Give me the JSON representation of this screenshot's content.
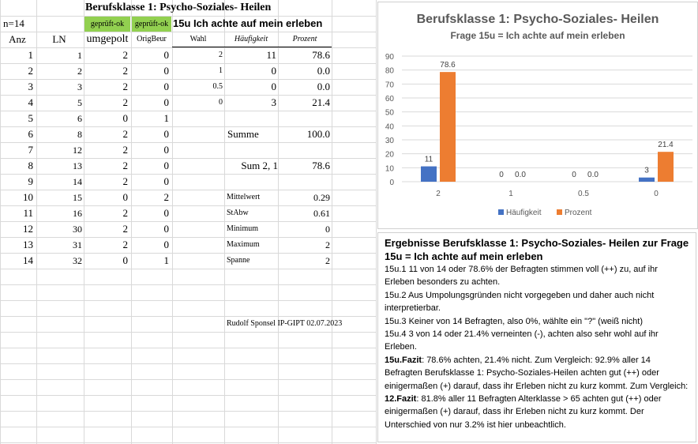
{
  "sheet": {
    "title": "Berufsklasse 1: Psycho-Soziales- Heilen",
    "n_label": "n=14",
    "tag1": "geprüft-ok",
    "tag2": "geprüft-ok",
    "question": "15u Ich achte auf mein erleben",
    "headers": {
      "anz": "Anz",
      "ln": "LN",
      "umgepolt": "umgepolt",
      "origbeur": "OrigBeur",
      "wahl": "Wahl",
      "haeufigkeit": "Häufigkeit",
      "prozent": "Prozent"
    },
    "rows": [
      {
        "anz": "1",
        "ln": "1",
        "umg": "2",
        "orig": "0"
      },
      {
        "anz": "2",
        "ln": "2",
        "umg": "2",
        "orig": "0"
      },
      {
        "anz": "3",
        "ln": "3",
        "umg": "2",
        "orig": "0"
      },
      {
        "anz": "4",
        "ln": "5",
        "umg": "2",
        "orig": "0"
      },
      {
        "anz": "5",
        "ln": "6",
        "umg": "0",
        "orig": "1"
      },
      {
        "anz": "6",
        "ln": "8",
        "umg": "2",
        "orig": "0"
      },
      {
        "anz": "7",
        "ln": "12",
        "umg": "2",
        "orig": "0"
      },
      {
        "anz": "8",
        "ln": "13",
        "umg": "2",
        "orig": "0"
      },
      {
        "anz": "9",
        "ln": "14",
        "umg": "2",
        "orig": "0"
      },
      {
        "anz": "10",
        "ln": "15",
        "umg": "0",
        "orig": "2"
      },
      {
        "anz": "11",
        "ln": "16",
        "umg": "2",
        "orig": "0"
      },
      {
        "anz": "12",
        "ln": "30",
        "umg": "2",
        "orig": "0"
      },
      {
        "anz": "13",
        "ln": "31",
        "umg": "2",
        "orig": "0"
      },
      {
        "anz": "14",
        "ln": "32",
        "umg": "0",
        "orig": "1"
      }
    ],
    "freq": [
      {
        "wahl": "2",
        "haeuf": "11",
        "proz": "78.6"
      },
      {
        "wahl": "1",
        "haeuf": "0",
        "proz": "0.0"
      },
      {
        "wahl": "0.5",
        "haeuf": "0",
        "proz": "0.0"
      },
      {
        "wahl": "0",
        "haeuf": "3",
        "proz": "21.4"
      }
    ],
    "summe_label": "Summe",
    "summe_value": "100.0",
    "sum21_label": "Sum 2, 1",
    "sum21_value": "78.6",
    "stats": [
      {
        "label": "Mittelwert",
        "value": "0.29"
      },
      {
        "label": "StAbw",
        "value": "0.61"
      },
      {
        "label": "Minimum",
        "value": "0"
      },
      {
        "label": "Maximum",
        "value": "2"
      },
      {
        "label": "Spanne",
        "value": "2"
      }
    ],
    "author": "Rudolf Sponsel IP-GIPT 02.07.2023"
  },
  "chart_data": {
    "type": "bar",
    "title": "Berufsklasse 1: Psycho-Soziales- Heilen",
    "subtitle": "Frage 15u =  Ich achte auf mein erleben",
    "categories": [
      "2",
      "1",
      "0.5",
      "0"
    ],
    "series": [
      {
        "name": "Häufigkeit",
        "values": [
          11,
          0,
          0,
          3
        ],
        "labels": [
          "11",
          "0",
          "0",
          "3"
        ],
        "color": "#4472c4"
      },
      {
        "name": "Prozent",
        "values": [
          78.6,
          0.0,
          0.0,
          21.4
        ],
        "labels": [
          "78.6",
          "0.0",
          "0.0",
          "21.4"
        ],
        "color": "#ed7d31"
      }
    ],
    "ylim": [
      0,
      90
    ],
    "yticks": [
      "0",
      "10",
      "20",
      "30",
      "40",
      "50",
      "60",
      "70",
      "80",
      "90"
    ],
    "grid": true,
    "legend": "bottom"
  },
  "results": {
    "heading": "Ergebnisse Berufsklasse 1: Psycho-Soziales- Heilen zur Frage 15u =  Ich achte auf mein erleben",
    "p1": "15u.1   11 von 14 oder 78.6% der Befragten stimmen voll (++) zu, auf ihr Erleben  besonders  zu achten.",
    "p2": "15u.2  Aus Umpolungsgründen nicht vorgegeben und daher auch nicht interpretierbar.",
    "p3": "15u.3  Keiner von 14 Befragten, also 0%, wählte ein \"?\" (weiß nicht)",
    "p4": "15u.4  3 von 14  oder 21.4%  verneinten (-), achten also sehr wohl auf ihr Erleben.",
    "fazit_label": "15u.Fazit",
    "fazit_text": ": 78.6% achten, 21.4% nicht. Zum Vergleich:  92.9%  aller 14 Befragten Berufsklasse 1: Psycho-Soziales-Heilen achten gut (++) oder einigermaßen (+) darauf, dass ihr Erleben nicht zu kurz kommt. Zum Vergleich: ",
    "fazit12_label": "12.Fazit",
    "fazit12_text": ": 81.8%  aller 11 Befragten Alterklasse > 65 achten gut (++) oder einigermaßen (+) darauf, dass ihr Erleben nicht zu kurz kommt. Der Unterschied von nur 3.2% ist hier unbeachtlich."
  }
}
